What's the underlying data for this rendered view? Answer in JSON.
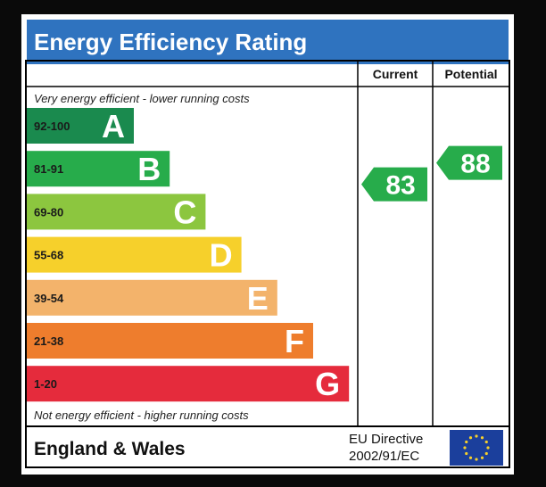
{
  "title": "Energy Efficiency Rating",
  "header": {
    "current_label": "Current",
    "potential_label": "Potential"
  },
  "top_note": "Very energy efficient - lower running costs",
  "bottom_note": "Not energy efficient - higher running costs",
  "footer": {
    "region": "England & Wales",
    "directive_line1": "EU Directive",
    "directive_line2": "2002/91/EC",
    "flag_icon": "eu-flag-icon"
  },
  "chart_data": {
    "type": "bar",
    "categories": [
      "A",
      "B",
      "C",
      "D",
      "E",
      "F",
      "G"
    ],
    "ranges": [
      "92-100",
      "81-91",
      "69-80",
      "55-68",
      "39-54",
      "21-38",
      "1-20"
    ],
    "colors": [
      "#1a8a4e",
      "#27ac4b",
      "#8cc63f",
      "#f6d02b",
      "#f3b36b",
      "#ee7d2d",
      "#e52b3c"
    ],
    "current": {
      "value": 83,
      "band": "B",
      "color": "#27ac4b"
    },
    "potential": {
      "value": 88,
      "band": "B",
      "color": "#27ac4b"
    }
  }
}
